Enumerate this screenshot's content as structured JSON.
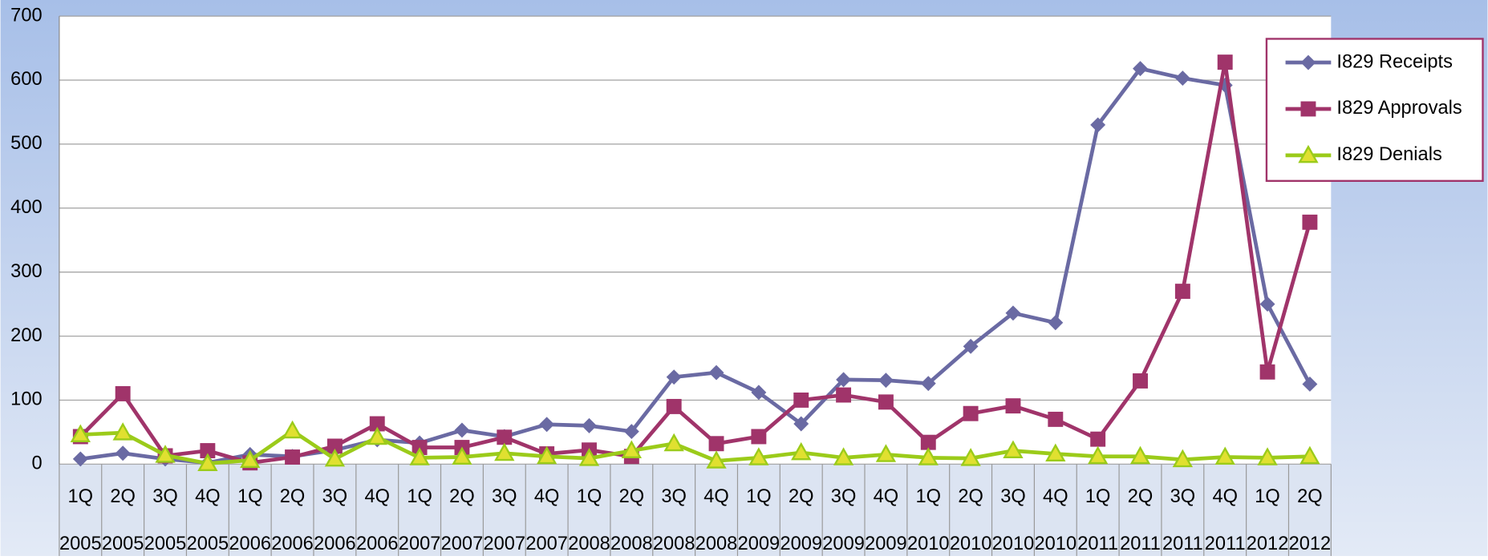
{
  "chart_data": {
    "type": "line",
    "categories": [
      [
        "1Q",
        "2005"
      ],
      [
        "2Q",
        "2005"
      ],
      [
        "3Q",
        "2005"
      ],
      [
        "4Q",
        "2005"
      ],
      [
        "1Q",
        "2006"
      ],
      [
        "2Q",
        "2006"
      ],
      [
        "3Q",
        "2006"
      ],
      [
        "4Q",
        "2006"
      ],
      [
        "1Q",
        "2007"
      ],
      [
        "2Q",
        "2007"
      ],
      [
        "3Q",
        "2007"
      ],
      [
        "4Q",
        "2007"
      ],
      [
        "1Q",
        "2008"
      ],
      [
        "2Q",
        "2008"
      ],
      [
        "3Q",
        "2008"
      ],
      [
        "4Q",
        "2008"
      ],
      [
        "1Q",
        "2009"
      ],
      [
        "2Q",
        "2009"
      ],
      [
        "3Q",
        "2009"
      ],
      [
        "4Q",
        "2009"
      ],
      [
        "1Q",
        "2010"
      ],
      [
        "2Q",
        "2010"
      ],
      [
        "3Q",
        "2010"
      ],
      [
        "4Q",
        "2010"
      ],
      [
        "1Q",
        "2011"
      ],
      [
        "2Q",
        "2011"
      ],
      [
        "3Q",
        "2011"
      ],
      [
        "4Q",
        "2011"
      ],
      [
        "1Q",
        "2012"
      ],
      [
        "2Q",
        "2012"
      ]
    ],
    "series": [
      {
        "name": "I829 Receipts",
        "color": "#6a6aa3",
        "marker": "diamond",
        "values": [
          8,
          17,
          8,
          2,
          15,
          12,
          22,
          38,
          33,
          53,
          43,
          62,
          60,
          51,
          136,
          143,
          112,
          63,
          132,
          131,
          126,
          184,
          236,
          221,
          530,
          618,
          603,
          592,
          250,
          125
        ]
      },
      {
        "name": "I829 Approvals",
        "color": "#a0346a",
        "marker": "square",
        "values": [
          43,
          110,
          13,
          21,
          2,
          11,
          28,
          63,
          26,
          26,
          42,
          16,
          22,
          12,
          90,
          32,
          43,
          100,
          108,
          97,
          34,
          79,
          91,
          70,
          39,
          130,
          270,
          628,
          144,
          378
        ]
      },
      {
        "name": "I829 Denials",
        "color": "#9bcb1a",
        "marker": "triangle",
        "values": [
          46,
          49,
          14,
          1,
          6,
          52,
          8,
          42,
          10,
          11,
          17,
          12,
          9,
          21,
          32,
          5,
          10,
          18,
          10,
          15,
          10,
          9,
          21,
          16,
          12,
          12,
          7,
          11,
          10,
          12
        ]
      }
    ],
    "ylim": [
      0,
      700
    ],
    "yticks": [
      0,
      100,
      200,
      300,
      400,
      500,
      600,
      700
    ],
    "grid": true,
    "legend": "top-right"
  }
}
